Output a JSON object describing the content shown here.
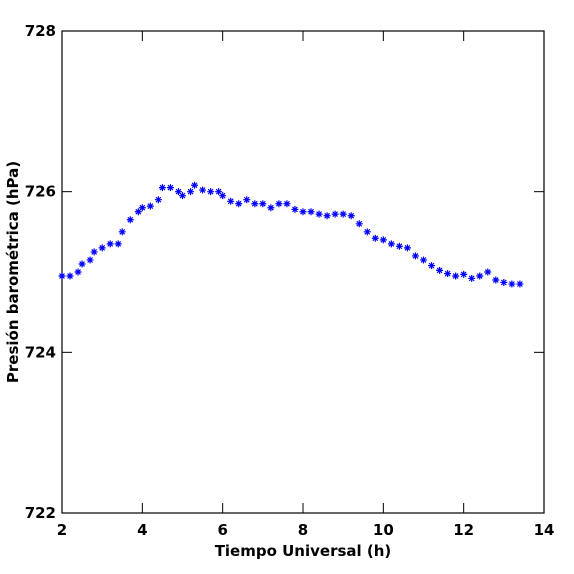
{
  "chart_data": {
    "type": "scatter",
    "x_label": "Tiempo Universal (h)",
    "y_label": "Presión barométrica (hPa)",
    "xlim": [
      2,
      14
    ],
    "xticks": [
      2,
      4,
      6,
      8,
      10,
      12,
      14
    ],
    "ylim": [
      722,
      728
    ],
    "yticks": [
      722,
      724,
      726,
      728
    ],
    "color": "#0000ff",
    "x": [
      2.0,
      2.2,
      2.4,
      2.5,
      2.7,
      2.8,
      3.0,
      3.2,
      3.4,
      3.5,
      3.7,
      3.9,
      4.0,
      4.2,
      4.4,
      4.5,
      4.7,
      4.9,
      5.0,
      5.2,
      5.3,
      5.5,
      5.7,
      5.9,
      6.0,
      6.2,
      6.4,
      6.6,
      6.8,
      7.0,
      7.2,
      7.4,
      7.6,
      7.8,
      8.0,
      8.2,
      8.4,
      8.6,
      8.8,
      9.0,
      9.2,
      9.4,
      9.6,
      9.8,
      10.0,
      10.2,
      10.4,
      10.6,
      10.8,
      11.0,
      11.2,
      11.4,
      11.6,
      11.8,
      12.0,
      12.2,
      12.4,
      12.6,
      12.8,
      13.0,
      13.2,
      13.4
    ],
    "y": [
      724.95,
      724.95,
      725.0,
      725.1,
      725.15,
      725.25,
      725.3,
      725.35,
      725.35,
      725.5,
      725.65,
      725.75,
      725.8,
      725.82,
      725.9,
      726.05,
      726.05,
      726.0,
      725.95,
      726.0,
      726.08,
      726.02,
      726.0,
      726.0,
      725.95,
      725.88,
      725.85,
      725.9,
      725.85,
      725.85,
      725.8,
      725.85,
      725.85,
      725.78,
      725.75,
      725.75,
      725.72,
      725.7,
      725.72,
      725.72,
      725.7,
      725.6,
      725.5,
      725.42,
      725.4,
      725.35,
      725.32,
      725.3,
      725.2,
      725.15,
      725.08,
      725.02,
      724.98,
      724.95,
      724.97,
      724.92,
      724.95,
      725.0,
      724.9,
      724.87,
      724.85,
      724.85
    ]
  }
}
